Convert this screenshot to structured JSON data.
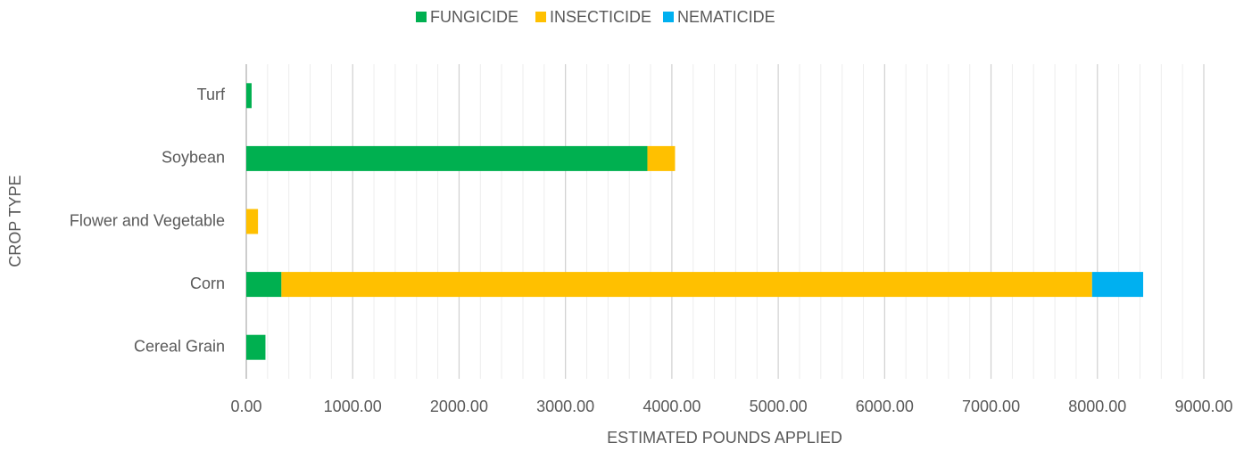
{
  "chart_data": {
    "type": "stacked_barh",
    "x_label": "ESTIMATED POUNDS APPLIED",
    "y_label": "CROP TYPE",
    "categories": [
      "Cereal Grain",
      "Corn",
      "Flower and Vegetable",
      "Soybean",
      "Turf"
    ],
    "series": [
      {
        "name": "FUNGICIDE",
        "color": "#00b050",
        "values": [
          180,
          330,
          0,
          3770,
          50
        ]
      },
      {
        "name": "INSECTICIDE",
        "color": "#ffc000",
        "values": [
          0,
          7620,
          110,
          260,
          0
        ]
      },
      {
        "name": "NEMATICIDE",
        "color": "#00b0f0",
        "values": [
          0,
          480,
          0,
          0,
          0
        ]
      }
    ],
    "xlim": [
      0,
      9000
    ],
    "xticks": [
      {
        "value": 0,
        "label": "0.00"
      },
      {
        "value": 1000,
        "label": "1000.00"
      },
      {
        "value": 2000,
        "label": "2000.00"
      },
      {
        "value": 3000,
        "label": "3000.00"
      },
      {
        "value": 4000,
        "label": "4000.00"
      },
      {
        "value": 5000,
        "label": "5000.00"
      },
      {
        "value": 6000,
        "label": "6000.00"
      },
      {
        "value": 7000,
        "label": "7000.00"
      },
      {
        "value": 8000,
        "label": "8000.00"
      },
      {
        "value": 9000,
        "label": "9000.00"
      }
    ],
    "minor_xticks": [
      200,
      400,
      600,
      800,
      1200,
      1400,
      1600,
      1800,
      2200,
      2400,
      2600,
      2800,
      3200,
      3400,
      3600,
      3800,
      4200,
      4400,
      4600,
      4800,
      5200,
      5400,
      5600,
      5800,
      6200,
      6400,
      6600,
      6800,
      7200,
      7400,
      7600,
      7800,
      8200,
      8400,
      8600,
      8800
    ],
    "grid": true,
    "legend": "top"
  }
}
